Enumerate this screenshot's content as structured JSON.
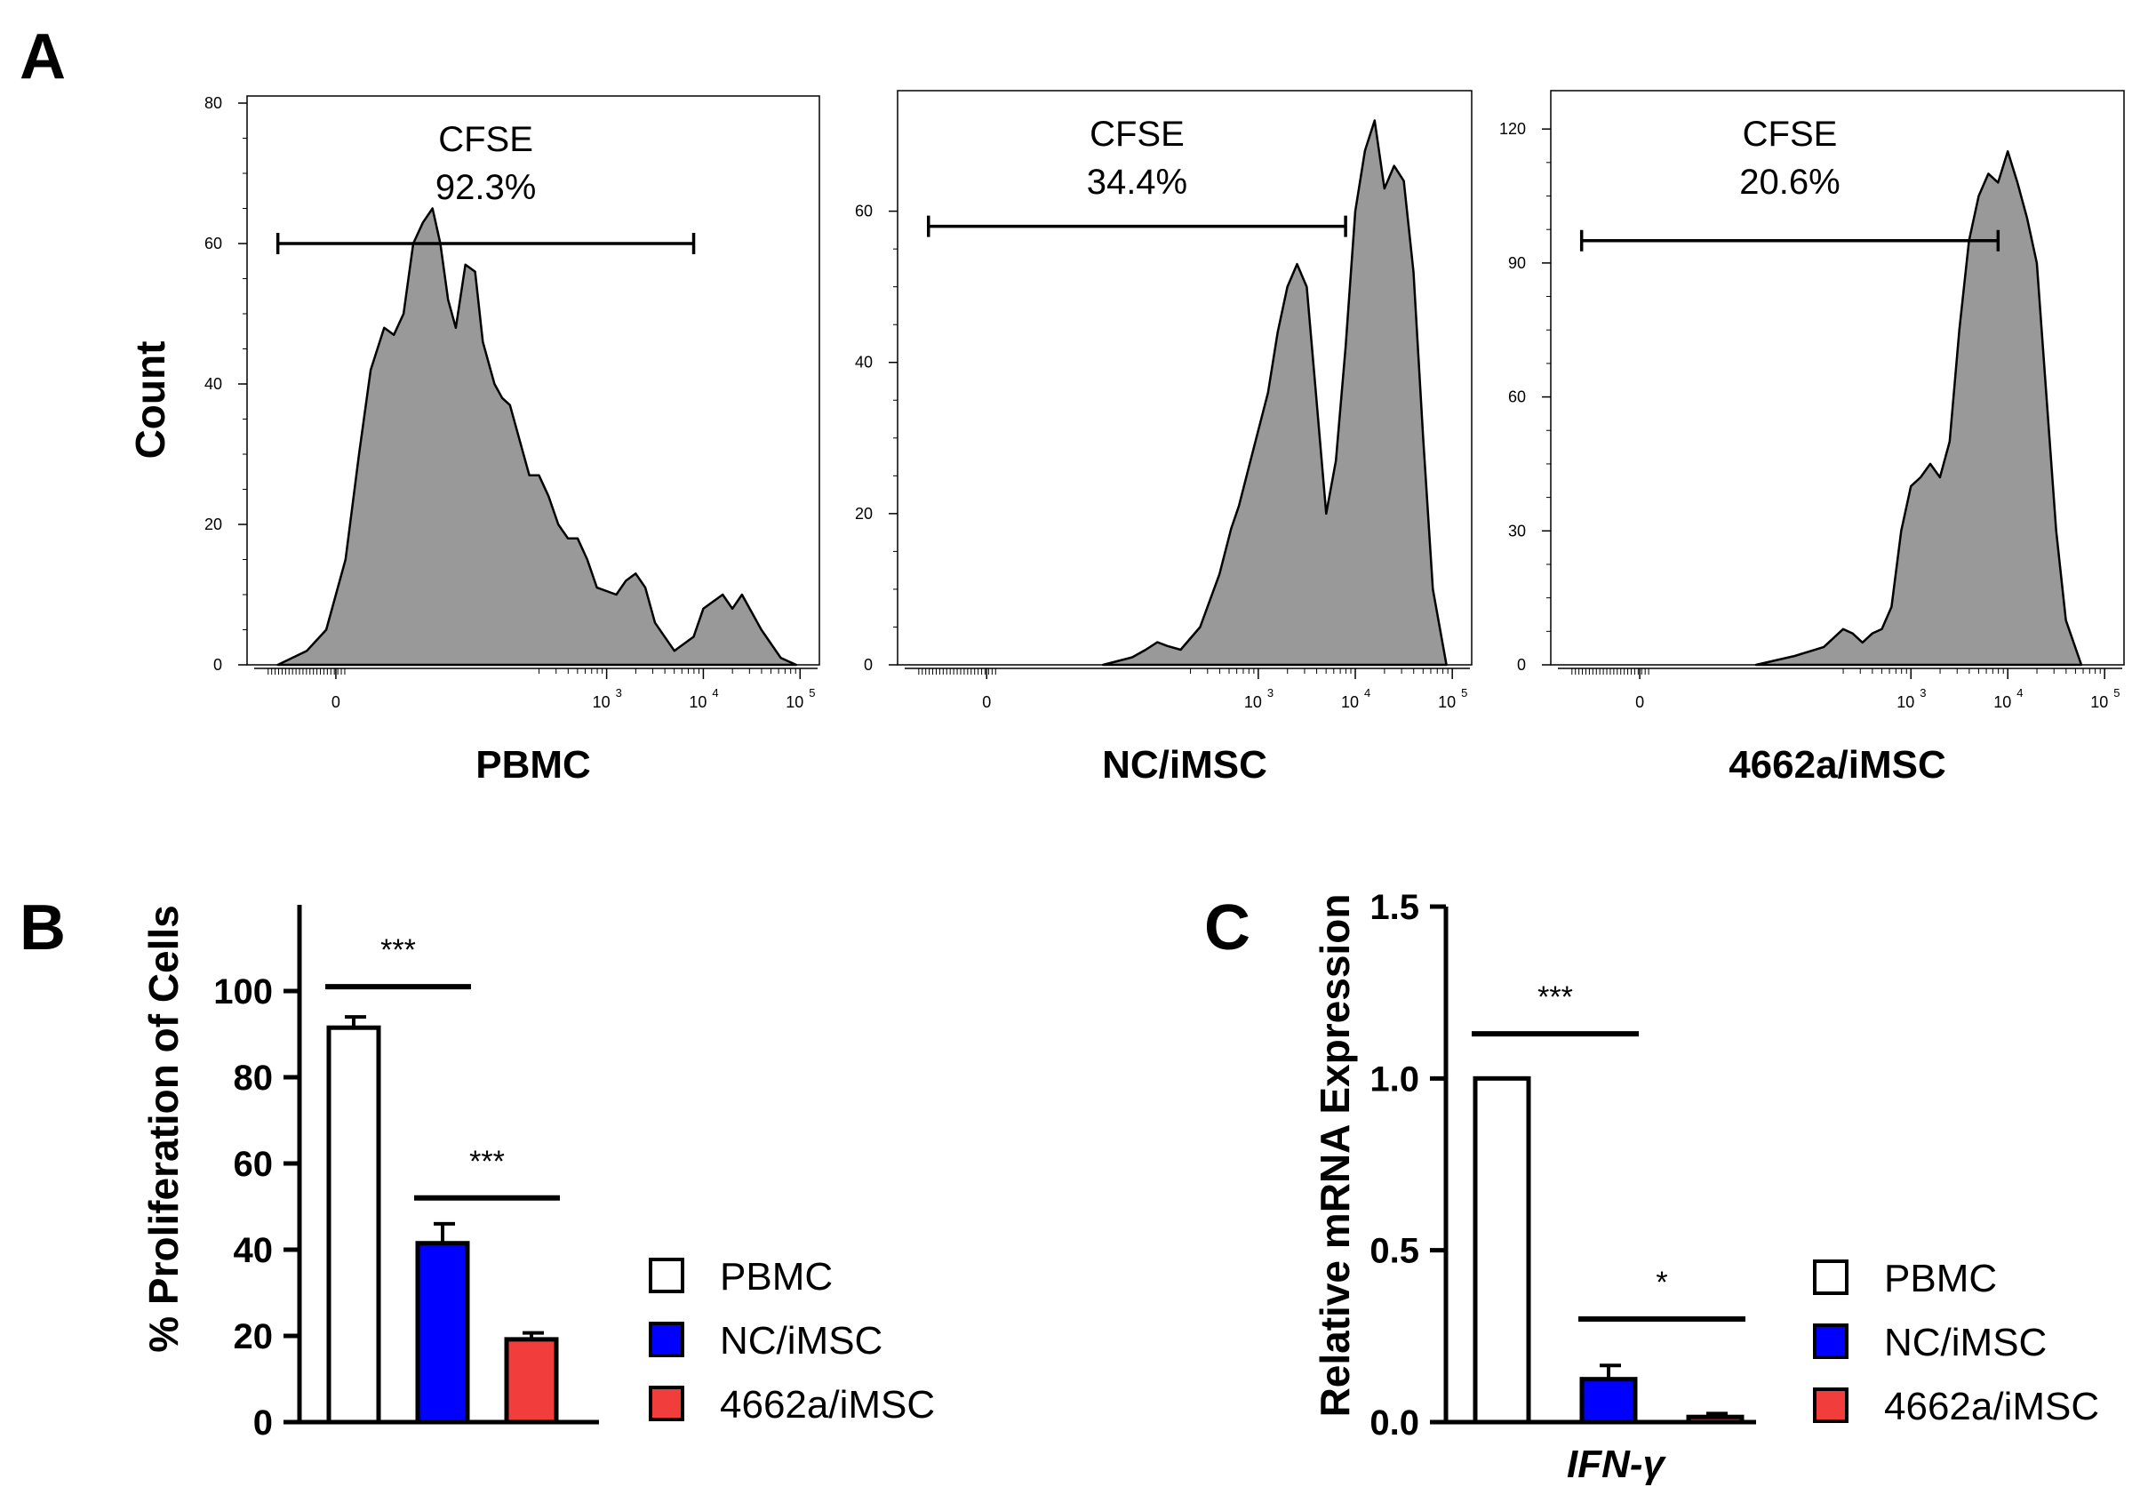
{
  "panel_labels": {
    "a": "A",
    "b": "B",
    "c": "C"
  },
  "colors": {
    "fill_gray": "#999999",
    "pbmc": "#ffffff",
    "nc": "#0000ff",
    "r4662": "#f23d3d",
    "stroke": "#000000"
  },
  "chart_data": [
    {
      "type": "area",
      "title": "PBMC",
      "xlabel": "PBMC",
      "ylabel": "Count",
      "ylim": [
        0,
        80
      ],
      "yticks": [
        "0",
        "20",
        "40",
        "60",
        "80"
      ],
      "ytick_values": [
        0,
        20,
        40,
        60,
        80
      ],
      "xtick_labels": [
        "0",
        "10",
        "10",
        "10"
      ],
      "xtick_exponents": [
        "",
        "3",
        "4",
        "5"
      ],
      "gate": {
        "label": "CFSE",
        "percent": "92.3%",
        "level": 60
      },
      "profile": [
        [
          -0.3,
          0
        ],
        [
          -0.15,
          2
        ],
        [
          -0.05,
          5
        ],
        [
          0.05,
          15
        ],
        [
          0.12,
          30
        ],
        [
          0.18,
          42
        ],
        [
          0.25,
          48
        ],
        [
          0.3,
          47
        ],
        [
          0.35,
          50
        ],
        [
          0.4,
          60
        ],
        [
          0.45,
          63
        ],
        [
          0.5,
          65
        ],
        [
          0.54,
          60
        ],
        [
          0.58,
          52
        ],
        [
          0.62,
          48
        ],
        [
          0.67,
          57
        ],
        [
          0.72,
          56
        ],
        [
          0.76,
          46
        ],
        [
          0.82,
          40
        ],
        [
          0.86,
          38
        ],
        [
          0.9,
          37
        ],
        [
          0.95,
          32
        ],
        [
          1.0,
          27
        ],
        [
          1.05,
          27
        ],
        [
          1.1,
          24
        ],
        [
          1.15,
          20
        ],
        [
          1.2,
          18
        ],
        [
          1.25,
          18
        ],
        [
          1.3,
          15
        ],
        [
          1.35,
          11
        ],
        [
          1.45,
          10
        ],
        [
          1.5,
          12
        ],
        [
          1.55,
          13
        ],
        [
          1.6,
          11
        ],
        [
          1.65,
          6
        ],
        [
          1.75,
          2
        ],
        [
          1.85,
          4
        ],
        [
          1.9,
          8
        ],
        [
          2.0,
          10
        ],
        [
          2.05,
          8
        ],
        [
          2.1,
          10
        ],
        [
          2.2,
          5
        ],
        [
          2.3,
          1
        ],
        [
          2.38,
          0
        ]
      ]
    },
    {
      "type": "area",
      "title": "NC/iMSC",
      "xlabel": "NC/iMSC",
      "ylim": [
        0,
        75
      ],
      "yticks": [
        "0",
        "20",
        "40",
        "60"
      ],
      "ytick_values": [
        0,
        20,
        40,
        60
      ],
      "xtick_labels": [
        "0",
        "10",
        "10",
        "10"
      ],
      "xtick_exponents": [
        "",
        "3",
        "4",
        "5"
      ],
      "gate": {
        "label": "CFSE",
        "percent": "34.4%",
        "level": 58
      },
      "profile": [
        [
          0.6,
          0
        ],
        [
          0.75,
          1
        ],
        [
          0.82,
          2
        ],
        [
          0.88,
          3
        ],
        [
          0.93,
          2.5
        ],
        [
          1.0,
          2
        ],
        [
          1.1,
          5
        ],
        [
          1.2,
          12
        ],
        [
          1.26,
          18
        ],
        [
          1.3,
          21
        ],
        [
          1.35,
          26
        ],
        [
          1.45,
          36
        ],
        [
          1.5,
          44
        ],
        [
          1.55,
          50
        ],
        [
          1.6,
          53
        ],
        [
          1.65,
          50
        ],
        [
          1.7,
          35
        ],
        [
          1.75,
          20
        ],
        [
          1.8,
          27
        ],
        [
          1.85,
          42
        ],
        [
          1.9,
          60
        ],
        [
          1.95,
          68
        ],
        [
          2.0,
          72
        ],
        [
          2.05,
          63
        ],
        [
          2.1,
          66
        ],
        [
          2.15,
          64
        ],
        [
          2.2,
          52
        ],
        [
          2.25,
          30
        ],
        [
          2.3,
          10
        ],
        [
          2.37,
          0
        ]
      ]
    },
    {
      "type": "area",
      "title": "4662a/iMSC",
      "xlabel": "4662a/iMSC",
      "ylim": [
        0,
        127
      ],
      "yticks": [
        "0",
        "30",
        "60",
        "90",
        "120"
      ],
      "ytick_values": [
        0,
        30,
        60,
        90,
        120
      ],
      "xtick_labels": [
        "0",
        "10",
        "10",
        "10"
      ],
      "xtick_exponents": [
        "",
        "3",
        "4",
        "5"
      ],
      "gate": {
        "label": "CFSE",
        "percent": "20.6%",
        "level": 95
      },
      "profile": [
        [
          0.6,
          0
        ],
        [
          0.8,
          2
        ],
        [
          0.95,
          4
        ],
        [
          1.05,
          8
        ],
        [
          1.1,
          7
        ],
        [
          1.15,
          5
        ],
        [
          1.2,
          7
        ],
        [
          1.25,
          8
        ],
        [
          1.3,
          13
        ],
        [
          1.35,
          30
        ],
        [
          1.4,
          40
        ],
        [
          1.45,
          42
        ],
        [
          1.5,
          45
        ],
        [
          1.55,
          42
        ],
        [
          1.6,
          50
        ],
        [
          1.65,
          75
        ],
        [
          1.7,
          95
        ],
        [
          1.75,
          105
        ],
        [
          1.8,
          110
        ],
        [
          1.85,
          108
        ],
        [
          1.9,
          115
        ],
        [
          1.95,
          108
        ],
        [
          2.0,
          100
        ],
        [
          2.05,
          90
        ],
        [
          2.1,
          60
        ],
        [
          2.15,
          30
        ],
        [
          2.2,
          10
        ],
        [
          2.28,
          0
        ]
      ]
    },
    {
      "type": "bar",
      "title": "",
      "ylabel": "% Proliferation of Cells",
      "ylim": [
        0,
        120
      ],
      "yticks": [
        "0",
        "20",
        "40",
        "60",
        "80",
        "100"
      ],
      "ytick_values": [
        0,
        20,
        40,
        60,
        80,
        100
      ],
      "categories": [
        "PBMC",
        "NC/iMSC",
        "4662a/iMSC"
      ],
      "values": [
        91.5,
        41.5,
        19.2
      ],
      "errors": [
        2.5,
        4.5,
        1.5
      ],
      "significance": [
        {
          "label": "***",
          "from": 0,
          "to": 1,
          "level": 101
        },
        {
          "label": "***",
          "from": 1,
          "to": 2,
          "level": 52
        }
      ],
      "legend": [
        "PBMC",
        "NC/iMSC",
        "4662a/iMSC"
      ]
    },
    {
      "type": "bar",
      "title": "",
      "ylabel": "Relative mRNA Expression",
      "xlabel": "IFN-γ",
      "ylim": [
        0,
        1.5
      ],
      "yticks": [
        "0.0",
        "0.5",
        "1.0",
        "1.5"
      ],
      "ytick_values": [
        0,
        0.5,
        1.0,
        1.5
      ],
      "categories": [
        "PBMC",
        "NC/iMSC",
        "4662a/iMSC"
      ],
      "values": [
        1.0,
        0.125,
        0.015
      ],
      "errors": [
        0,
        0.04,
        0.01
      ],
      "significance": [
        {
          "label": "***",
          "from": 0,
          "to": 1,
          "level": 1.13
        },
        {
          "label": "*",
          "from": 1,
          "to": 2,
          "level": 0.3
        }
      ],
      "legend": [
        "PBMC",
        "NC/iMSC",
        "4662a/iMSC"
      ]
    }
  ]
}
